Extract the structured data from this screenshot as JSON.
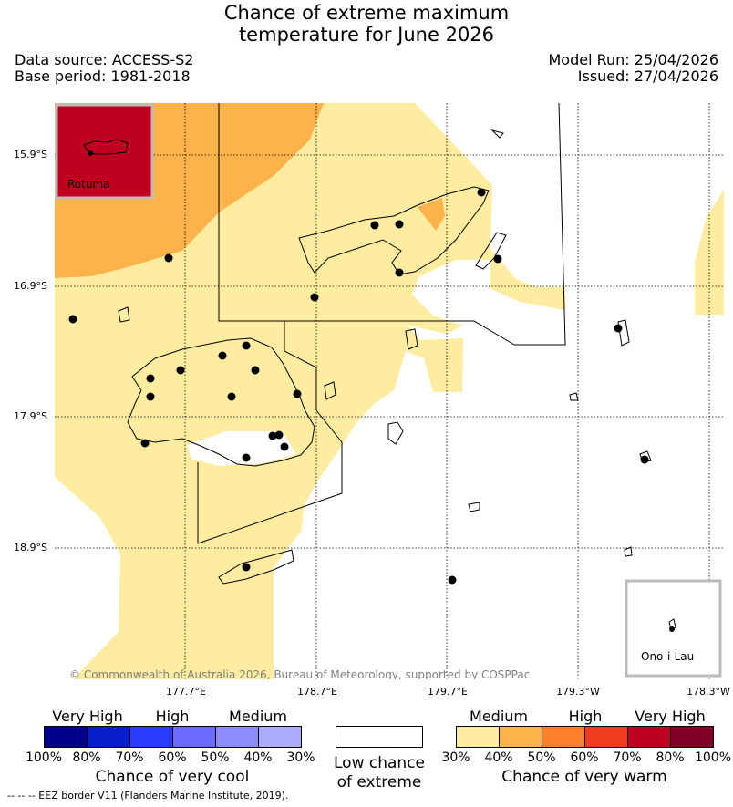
{
  "title_line1": "Chance of extreme maximum",
  "title_line2": "temperature for June 2026",
  "data_source": "Data source: ACCESS-S2",
  "base_period": "Base period: 1981-2018",
  "model_run": "Model Run: 25/04/2026",
  "issued": "Issued: 27/04/2026",
  "map": {
    "lat_labels": [
      "15.9°S",
      "16.9°S",
      "17.9°S",
      "18.9°S"
    ],
    "lon_labels": [
      "177.7°E",
      "178.7°E",
      "179.7°E",
      "179.3°W",
      "178.3°W"
    ],
    "inset_rotuma": "Rotuma",
    "inset_onoilau": "Ono-i-Lau",
    "copyright": "© Commonwealth of Australia 2026, Bureau of Meteorology, supported by COSPPac",
    "colors": {
      "medium_warm": "#feeca0",
      "high_warm": "#feb24c",
      "very_high_warm": "#c00020",
      "land_outline": "#000000",
      "station": "#000000"
    }
  },
  "legend": {
    "cool": {
      "headers": [
        "Very High",
        "High",
        "Medium"
      ],
      "ticks": [
        "100%",
        "80%",
        "70%",
        "60%",
        "50%",
        "40%",
        "30%"
      ],
      "colors": [
        "#00008b",
        "#0a1fcc",
        "#2a3cff",
        "#6a6aff",
        "#8c8cff",
        "#acacff"
      ],
      "title": "Chance of very cool"
    },
    "low": {
      "title_line1": "Low chance",
      "title_line2": "of extreme",
      "color": "#ffffff"
    },
    "warm": {
      "headers": [
        "Medium",
        "High",
        "Very High"
      ],
      "ticks": [
        "30%",
        "40%",
        "50%",
        "60%",
        "70%",
        "80%",
        "100%"
      ],
      "colors": [
        "#feeca0",
        "#feb24c",
        "#fd7f2b",
        "#f03b20",
        "#c00020",
        "#800026"
      ],
      "title": "Chance of very warm"
    }
  },
  "footnote": "--  --  -- EEZ border V11 (Flanders Marine Institute, 2019)."
}
